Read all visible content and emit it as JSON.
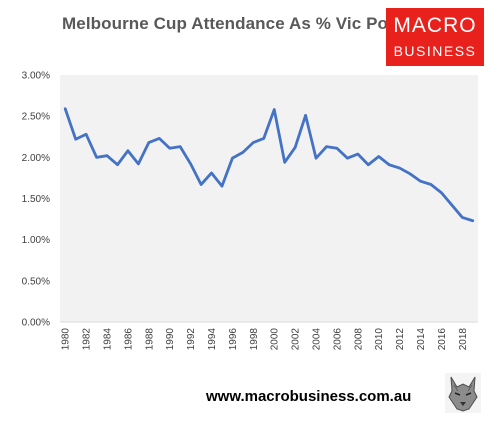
{
  "header": {
    "title": "Melbourne Cup Attendance As % Vic Pop"
  },
  "logo": {
    "line1": "MACRO",
    "line2": "BUSINESS",
    "color": "#e8211d"
  },
  "footer": {
    "url": "www.macrobusiness.com.au",
    "wolf_icon": "wolf-head-icon"
  },
  "chart_data": {
    "type": "line",
    "title": "Melbourne Cup Attendance As % Vic Pop",
    "xlabel": "",
    "ylabel": "",
    "ylim": [
      0,
      0.03
    ],
    "y_ticks": [
      "0.00%",
      "0.50%",
      "1.00%",
      "1.50%",
      "2.00%",
      "2.50%",
      "3.00%"
    ],
    "x_ticks": [
      "1980",
      "1982",
      "1984",
      "1986",
      "1988",
      "1990",
      "1992",
      "1994",
      "1996",
      "1998",
      "2000",
      "2002",
      "2004",
      "2006",
      "2008",
      "2010",
      "2012",
      "2014",
      "2016",
      "2018"
    ],
    "grid": false,
    "plot_background": "#f2f2f2",
    "series": [
      {
        "color": "#4472c4",
        "x": [
          1980,
          1981,
          1982,
          1983,
          1984,
          1985,
          1986,
          1987,
          1988,
          1989,
          1990,
          1991,
          1992,
          1993,
          1994,
          1995,
          1996,
          1997,
          1998,
          1999,
          2000,
          2001,
          2002,
          2003,
          2004,
          2005,
          2006,
          2007,
          2008,
          2009,
          2010,
          2011,
          2012,
          2013,
          2014,
          2015,
          2016,
          2017,
          2018,
          2019
        ],
        "values": [
          0.0259,
          0.0222,
          0.0228,
          0.02,
          0.0202,
          0.0191,
          0.0208,
          0.0192,
          0.0218,
          0.0223,
          0.0211,
          0.0213,
          0.0192,
          0.0167,
          0.0181,
          0.0165,
          0.0199,
          0.0206,
          0.0218,
          0.0223,
          0.0258,
          0.0194,
          0.0212,
          0.0251,
          0.0199,
          0.0213,
          0.0211,
          0.0199,
          0.0204,
          0.0191,
          0.0201,
          0.0191,
          0.0187,
          0.018,
          0.0171,
          0.0167,
          0.0157,
          0.0142,
          0.0127,
          0.0123
        ]
      }
    ]
  }
}
